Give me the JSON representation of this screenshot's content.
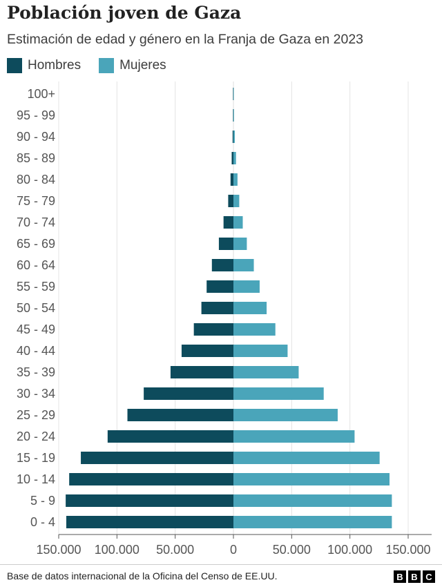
{
  "title": "Población joven de Gaza",
  "subtitle": "Estimación de edad y género en la Franja de Gaza en 2023",
  "legend": [
    {
      "label": "Hombres",
      "color": "#0d4b5c"
    },
    {
      "label": "Mujeres",
      "color": "#4aa5ba"
    }
  ],
  "source": "Base de datos internacional de la Oficina del Censo de EE.UU.",
  "logo": [
    "B",
    "B",
    "C"
  ],
  "chart_data": {
    "type": "bar",
    "orientation": "horizontal-pyramid",
    "categories": [
      "100+",
      "95 - 99",
      "90 - 94",
      "85 - 89",
      "80 - 84",
      "75 - 79",
      "70 - 74",
      "65 - 69",
      "60 - 64",
      "55 - 59",
      "50 - 54",
      "45 - 49",
      "40 - 44",
      "35 - 39",
      "30 - 34",
      "25 - 29",
      "20 - 24",
      "15 - 19",
      "10 - 14",
      "5 - 9",
      "0 - 4"
    ],
    "series": [
      {
        "name": "Hombres",
        "color": "#0d4b5c",
        "values": [
          50,
          300,
          700,
          1500,
          2500,
          4500,
          8500,
          12500,
          18500,
          23000,
          27500,
          34000,
          44500,
          54000,
          77000,
          91000,
          108000,
          131000,
          141000,
          144000,
          143500
        ]
      },
      {
        "name": "Mujeres",
        "color": "#4aa5ba",
        "values": [
          100,
          500,
          1200,
          2200,
          3500,
          5000,
          8000,
          11500,
          17500,
          22500,
          28500,
          36000,
          46500,
          56000,
          77500,
          89500,
          104000,
          125500,
          134000,
          136000,
          136000
        ]
      }
    ],
    "xticks": [
      -150000,
      -100000,
      -50000,
      0,
      50000,
      100000,
      150000
    ],
    "xtick_labels": [
      "150.000",
      "100.000",
      "50.000",
      "0",
      "50.000",
      "100.000",
      "150.000"
    ],
    "xlim": [
      -150000,
      150000
    ],
    "grid": "vertical"
  }
}
